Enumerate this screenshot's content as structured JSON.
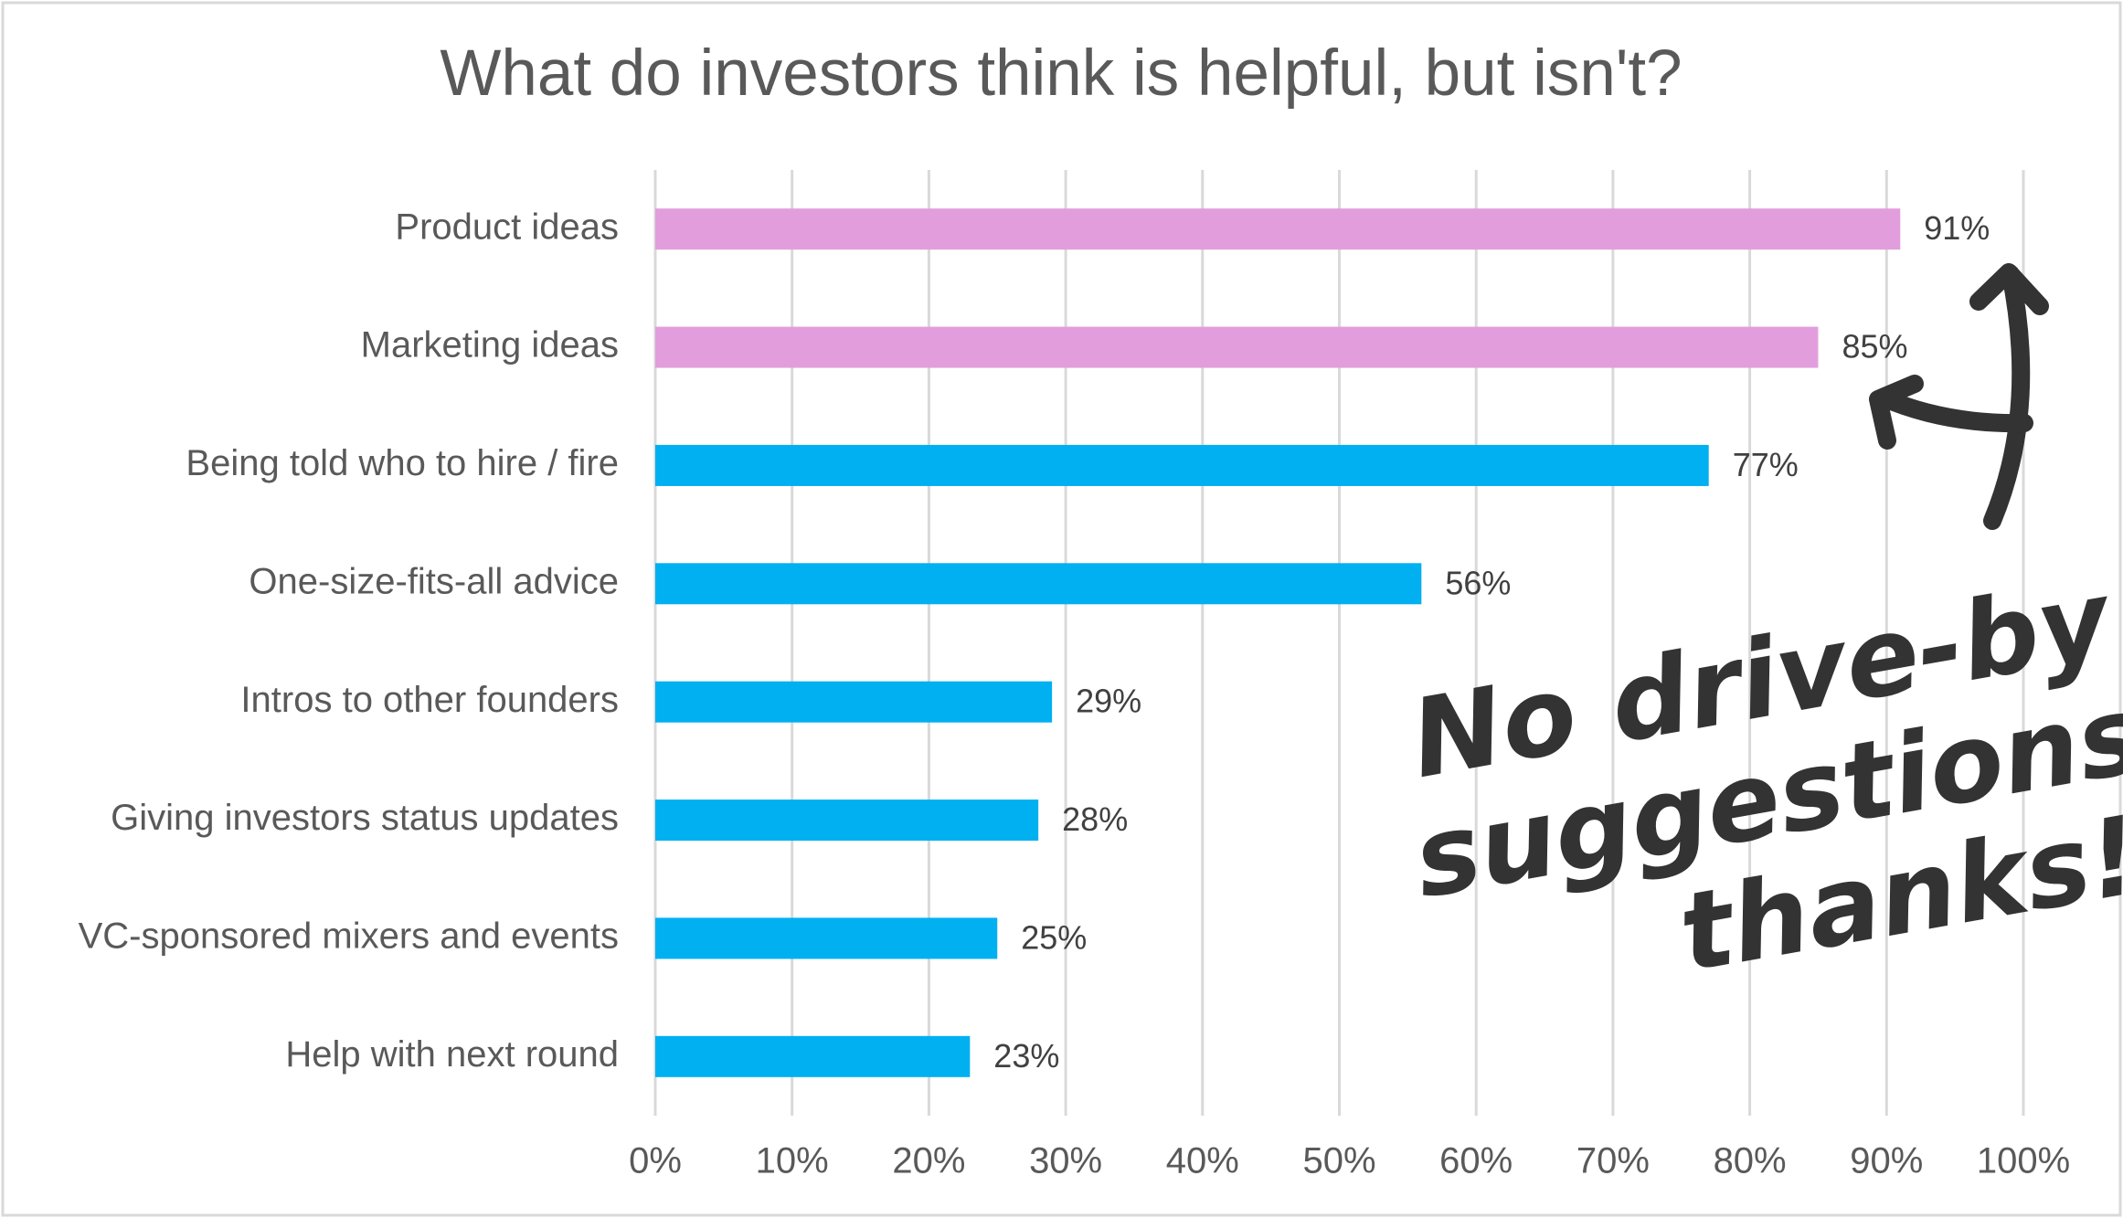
{
  "chart_data": {
    "type": "bar",
    "orientation": "horizontal",
    "title": "What do investors think is helpful, but isn't?",
    "categories": [
      "Product ideas",
      "Marketing ideas",
      "Being told who to hire / fire",
      "One-size-fits-all advice",
      "Intros to other founders",
      "Giving investors status updates",
      "VC-sponsored mixers and events",
      "Help with next round"
    ],
    "values": [
      91,
      85,
      77,
      56,
      29,
      28,
      25,
      23
    ],
    "value_labels": [
      "91%",
      "85%",
      "77%",
      "56%",
      "29%",
      "28%",
      "25%",
      "23%"
    ],
    "colors": [
      "#e29edc",
      "#e29edc",
      "#00b0f0",
      "#00b0f0",
      "#00b0f0",
      "#00b0f0",
      "#00b0f0",
      "#00b0f0"
    ],
    "xlim": [
      0,
      100
    ],
    "xticks": [
      {
        "value": 0,
        "label": "0%"
      },
      {
        "value": 10,
        "label": "10%"
      },
      {
        "value": 20,
        "label": "20%"
      },
      {
        "value": 30,
        "label": "30%"
      },
      {
        "value": 40,
        "label": "40%"
      },
      {
        "value": 50,
        "label": "50%"
      },
      {
        "value": 60,
        "label": "60%"
      },
      {
        "value": 70,
        "label": "70%"
      },
      {
        "value": 80,
        "label": "80%"
      },
      {
        "value": 90,
        "label": "90%"
      },
      {
        "value": 100,
        "label": "100%"
      }
    ],
    "grid": true,
    "annotation": [
      "No drive-by",
      "suggestions,",
      "thanks!"
    ]
  }
}
